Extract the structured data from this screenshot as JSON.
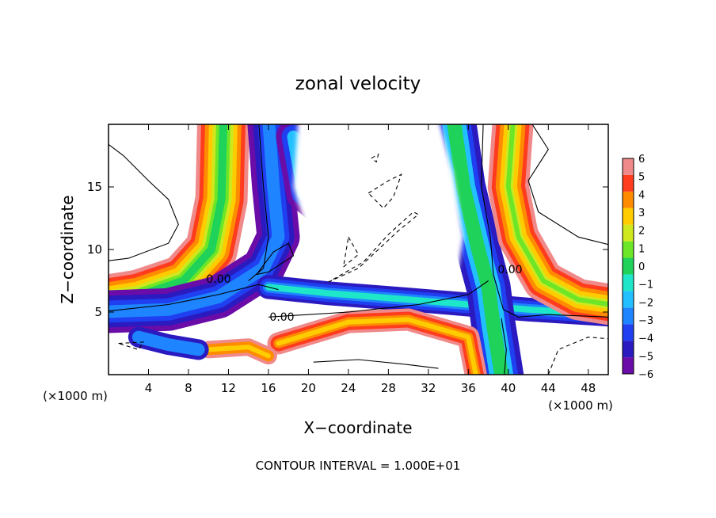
{
  "chart_data": {
    "type": "heatmap",
    "title": "zonal velocity",
    "xlabel": "X−coordinate",
    "ylabel": "Z−coordinate",
    "x_unit_left": "(×1000 m)",
    "x_unit_right": "(×1000 m)",
    "xlim": [
      0,
      50
    ],
    "ylim": [
      0,
      20
    ],
    "x_ticks": [
      4,
      8,
      12,
      16,
      20,
      24,
      28,
      32,
      36,
      40,
      44,
      48
    ],
    "x_tick_labels": [
      "4",
      "8",
      "12",
      "16",
      "20",
      "24",
      "28",
      "32",
      "36",
      "40",
      "44",
      "48"
    ],
    "y_ticks": [
      5,
      10,
      15
    ],
    "y_tick_labels": [
      "5",
      "10",
      "15"
    ],
    "zero_contour_labels": [
      "0.00",
      "0.00",
      "0.00"
    ],
    "footnote": "CONTOUR INTERVAL = 1.000E+01",
    "colorbar": {
      "levels": [
        -6,
        -5,
        -4,
        -3,
        -2,
        -1,
        0,
        1,
        2,
        3,
        4,
        5,
        6
      ],
      "tick_labels": [
        "−6",
        "−5",
        "−4",
        "−3",
        "−2",
        "−1",
        "0",
        "1",
        "2",
        "3",
        "4",
        "5",
        "6"
      ],
      "colors": [
        "#6a0ca8",
        "#2a1ac0",
        "#1f3ff0",
        "#1e84ff",
        "#22c0ff",
        "#1ee6c8",
        "#1ed25a",
        "#6ee628",
        "#cfe81e",
        "#ffcc00",
        "#ff8c00",
        "#ff3c1e",
        "#f08a8a"
      ]
    }
  }
}
